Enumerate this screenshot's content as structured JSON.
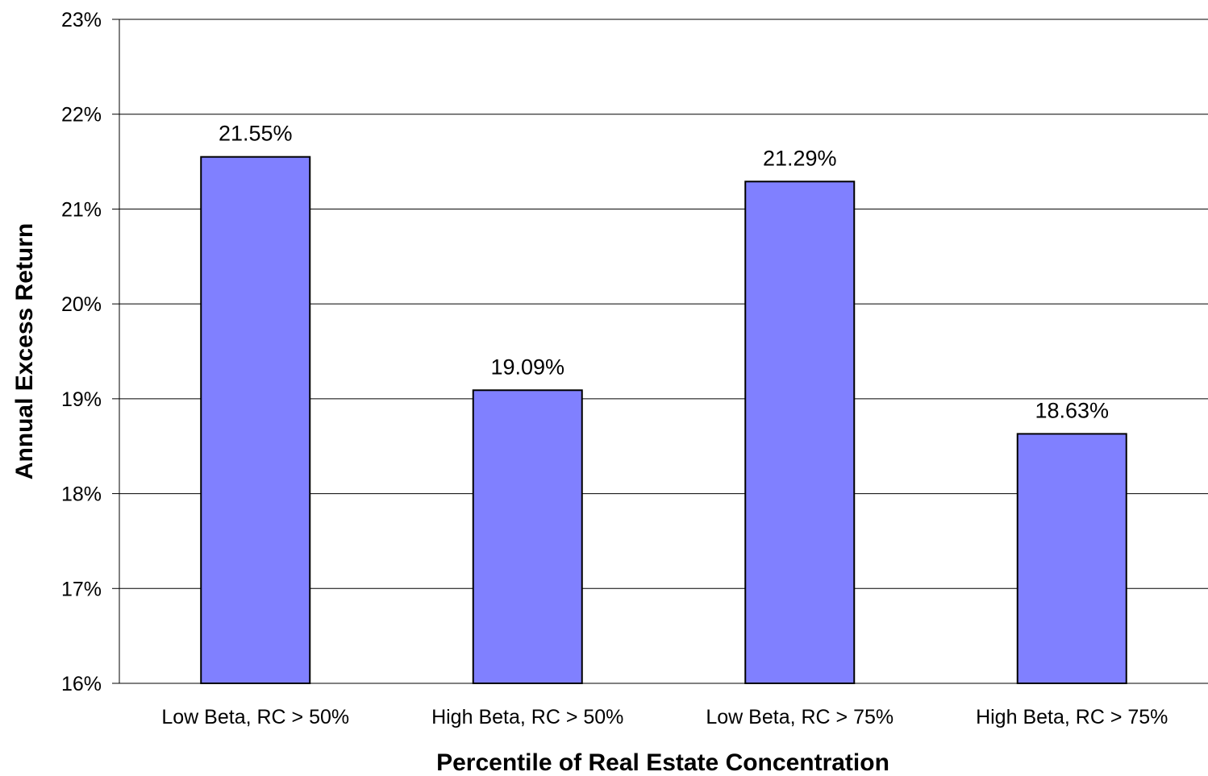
{
  "chart_data": {
    "type": "bar",
    "title": "",
    "xlabel": "Percentile of Real Estate Concentration",
    "ylabel": "Annual Excess Return",
    "categories": [
      "Low Beta, RC > 50%",
      "High Beta, RC > 50%",
      "Low Beta, RC > 75%",
      "High Beta, RC > 75%"
    ],
    "values": [
      21.55,
      19.09,
      21.29,
      18.63
    ],
    "value_labels": [
      "21.55%",
      "19.09%",
      "21.29%",
      "18.63%"
    ],
    "ylim": [
      16,
      23
    ],
    "yticks": [
      16,
      17,
      18,
      19,
      20,
      21,
      22,
      23
    ],
    "ytick_labels": [
      "16%",
      "17%",
      "18%",
      "19%",
      "20%",
      "21%",
      "22%",
      "23%"
    ],
    "grid": "horizontal",
    "legend": "none",
    "colors": {
      "bar": "#8080ff",
      "bar_edge": "#000000",
      "grid": "#000000"
    }
  }
}
